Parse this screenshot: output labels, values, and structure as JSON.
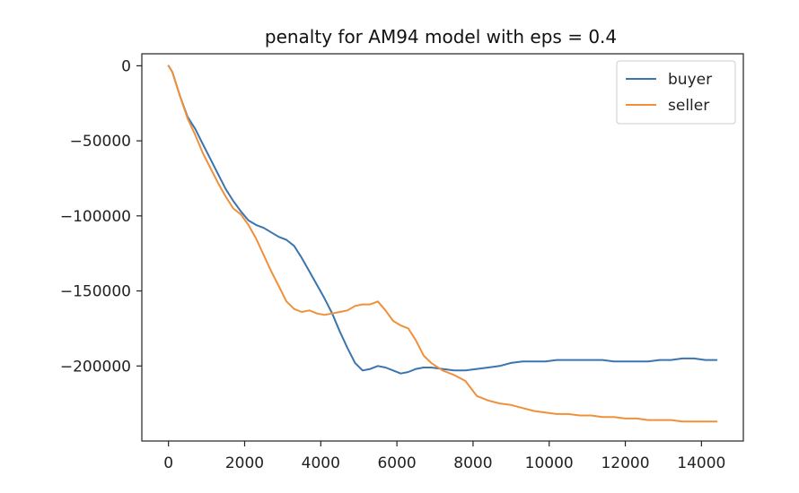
{
  "chart_data": {
    "type": "line",
    "title": "penalty for AM94 model with eps = 0.4",
    "xlabel": "",
    "ylabel": "",
    "xlim": [
      -700,
      15100
    ],
    "ylim": [
      -250000,
      8000
    ],
    "grid": false,
    "legend_position": "top-right",
    "x_ticks": [
      0,
      2000,
      4000,
      6000,
      8000,
      10000,
      12000,
      14000
    ],
    "x_tick_labels": [
      "0",
      "2000",
      "4000",
      "6000",
      "8000",
      "10000",
      "12000",
      "14000"
    ],
    "y_ticks": [
      0,
      -50000,
      -100000,
      -150000,
      -200000
    ],
    "y_tick_labels": [
      "0",
      "−50000",
      "−100000",
      "−150000",
      "−200000"
    ],
    "series": [
      {
        "name": "buyer",
        "color": "#3a75b0",
        "x": [
          0,
          100,
          300,
          500,
          700,
          900,
          1100,
          1300,
          1500,
          1700,
          1900,
          2100,
          2300,
          2500,
          2700,
          2900,
          3100,
          3300,
          3500,
          3700,
          3900,
          4100,
          4300,
          4500,
          4700,
          4900,
          5100,
          5300,
          5500,
          5700,
          5900,
          6100,
          6300,
          6500,
          6700,
          6900,
          7200,
          7500,
          7800,
          8100,
          8400,
          8700,
          9000,
          9300,
          9600,
          9900,
          10200,
          10500,
          10800,
          11100,
          11400,
          11700,
          12000,
          12300,
          12600,
          12900,
          13200,
          13500,
          13800,
          14100,
          14400
        ],
        "y": [
          0,
          -4000,
          -20000,
          -34000,
          -42000,
          -52000,
          -62000,
          -72000,
          -82000,
          -90000,
          -97000,
          -103000,
          -106000,
          -108000,
          -111000,
          -114000,
          -116000,
          -120000,
          -128000,
          -137000,
          -146000,
          -155000,
          -165000,
          -177000,
          -188000,
          -198000,
          -203000,
          -202000,
          -200000,
          -201000,
          -203000,
          -205000,
          -204000,
          -202000,
          -201000,
          -201000,
          -202000,
          -203000,
          -203000,
          -202000,
          -201000,
          -200000,
          -198000,
          -197000,
          -197000,
          -197000,
          -196000,
          -196000,
          -196000,
          -196000,
          -196000,
          -197000,
          -197000,
          -197000,
          -197000,
          -196000,
          -196000,
          -195000,
          -195000,
          -196000,
          -196000
        ]
      },
      {
        "name": "seller",
        "color": "#f0903a",
        "x": [
          0,
          100,
          300,
          500,
          700,
          900,
          1100,
          1300,
          1500,
          1700,
          1900,
          2100,
          2300,
          2500,
          2700,
          2900,
          3100,
          3300,
          3500,
          3700,
          3900,
          4100,
          4300,
          4500,
          4700,
          4900,
          5100,
          5300,
          5500,
          5700,
          5900,
          6100,
          6300,
          6500,
          6700,
          6900,
          7200,
          7500,
          7800,
          8100,
          8400,
          8700,
          9000,
          9300,
          9600,
          9900,
          10200,
          10500,
          10800,
          11100,
          11400,
          11700,
          12000,
          12300,
          12600,
          12900,
          13200,
          13500,
          13800,
          14100,
          14400
        ],
        "y": [
          0,
          -4000,
          -20000,
          -35000,
          -46000,
          -58000,
          -68000,
          -78000,
          -87000,
          -95000,
          -99000,
          -106000,
          -115000,
          -126000,
          -137000,
          -147000,
          -157000,
          -162000,
          -164000,
          -163000,
          -165000,
          -166000,
          -165000,
          -164000,
          -163000,
          -160000,
          -159000,
          -159000,
          -157000,
          -163000,
          -170000,
          -173000,
          -175000,
          -183000,
          -193000,
          -198000,
          -203000,
          -206000,
          -210000,
          -220000,
          -223000,
          -225000,
          -226000,
          -228000,
          -230000,
          -231000,
          -232000,
          -232000,
          -233000,
          -233000,
          -234000,
          -234000,
          -235000,
          -235000,
          -236000,
          -236000,
          -236000,
          -237000,
          -237000,
          -237000,
          -237000
        ]
      }
    ]
  }
}
